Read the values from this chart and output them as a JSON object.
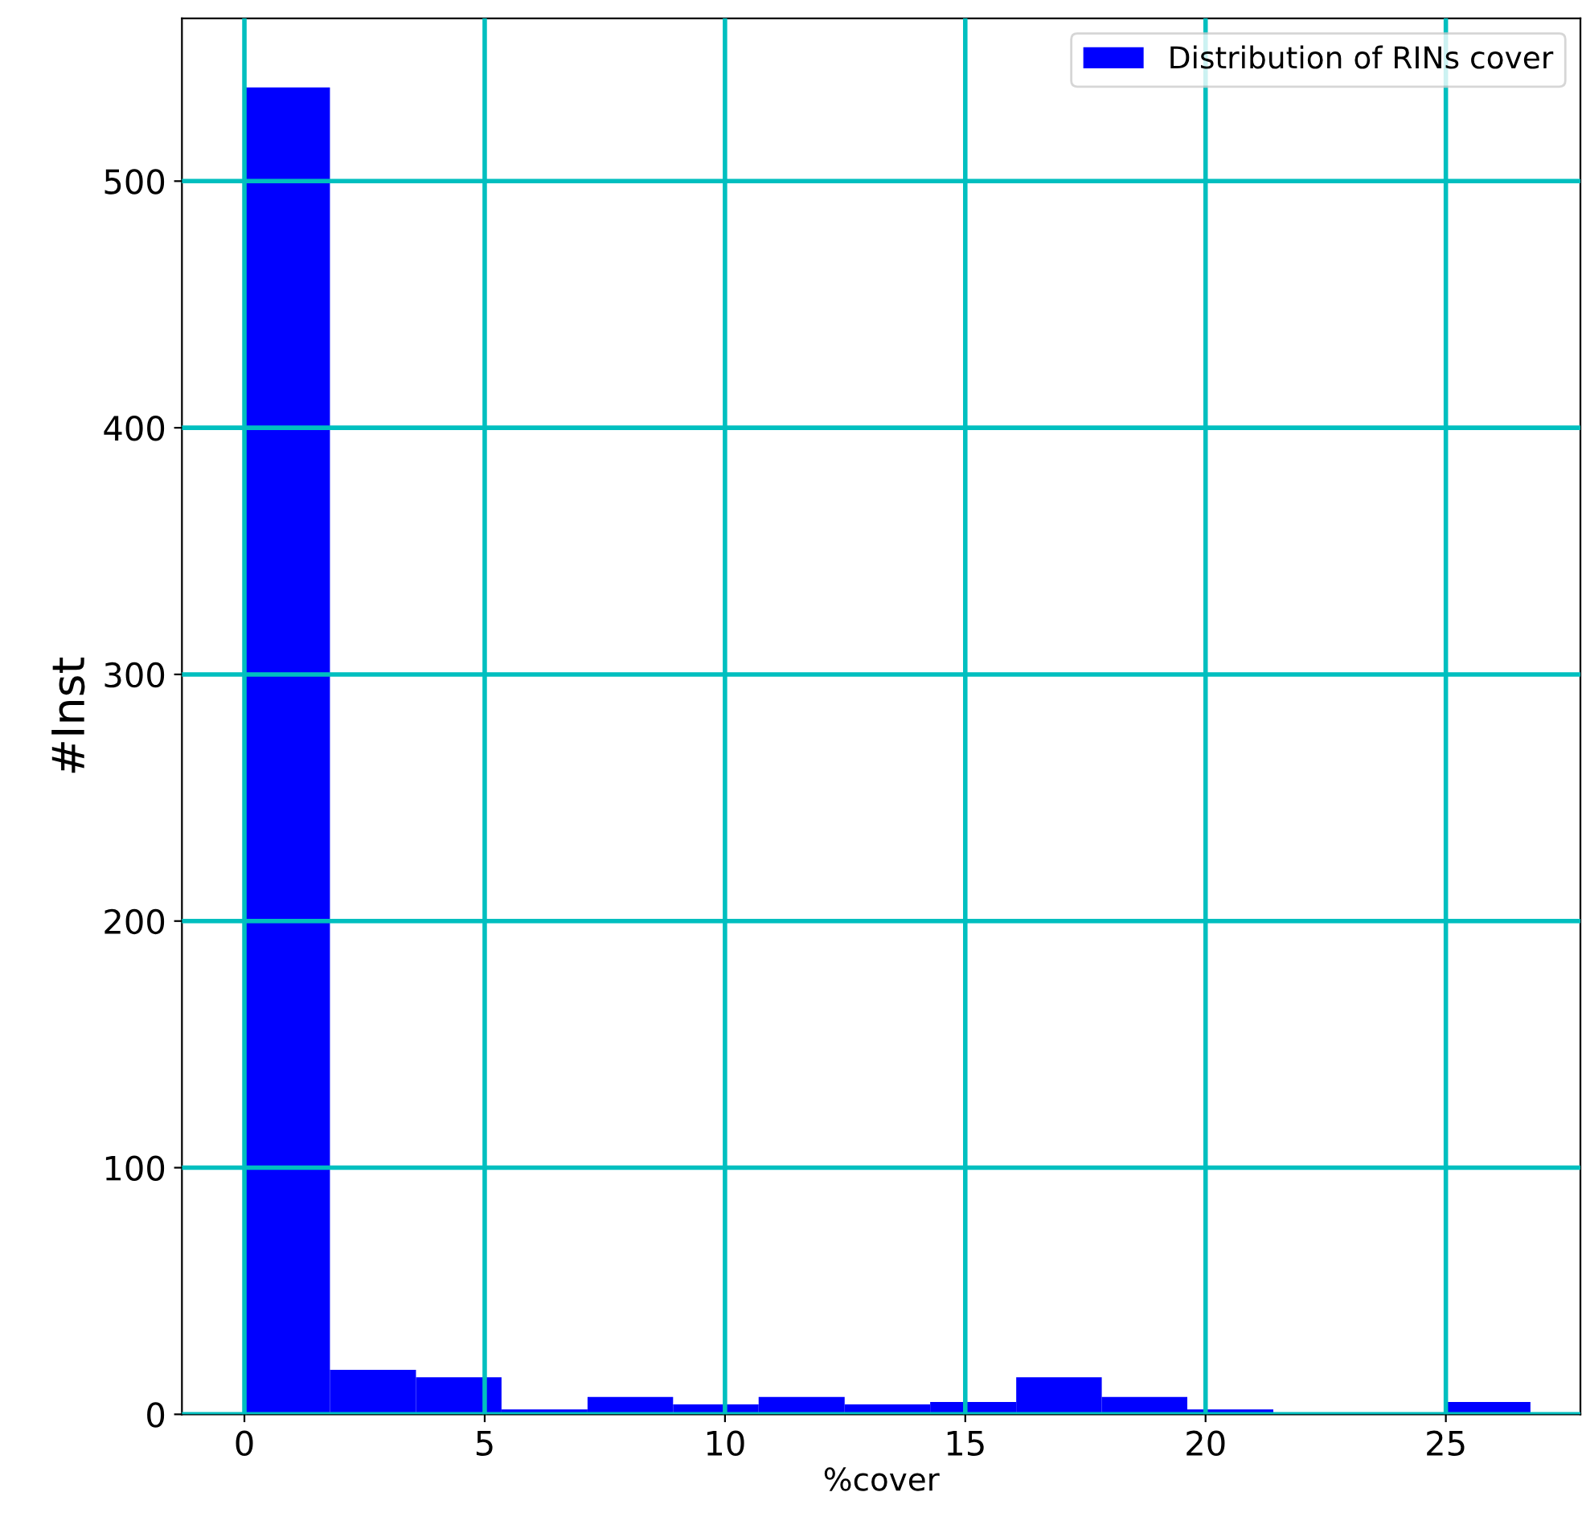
{
  "chart_data": {
    "type": "histogram",
    "xlabel": "%cover",
    "ylabel": "#Inst",
    "bins": [
      0,
      1.78,
      3.57,
      5.35,
      7.14,
      8.92,
      10.7,
      12.49,
      14.27,
      16.06,
      17.84,
      19.62,
      21.41,
      24.98,
      26.76
    ],
    "series": [
      {
        "name": "Distribution of RINs cover",
        "color": "#0000ff",
        "values": [
          538,
          18,
          15,
          2,
          7,
          4,
          7,
          4,
          5,
          15,
          7,
          2,
          0,
          5
        ]
      }
    ],
    "xlim": [
      -1.3,
      27.8
    ],
    "ylim": [
      0,
      566
    ],
    "xticks": [
      0,
      5,
      10,
      15,
      20,
      25
    ],
    "yticks": [
      0,
      100,
      200,
      300,
      400,
      500
    ],
    "grid": true,
    "legend": "top right"
  }
}
